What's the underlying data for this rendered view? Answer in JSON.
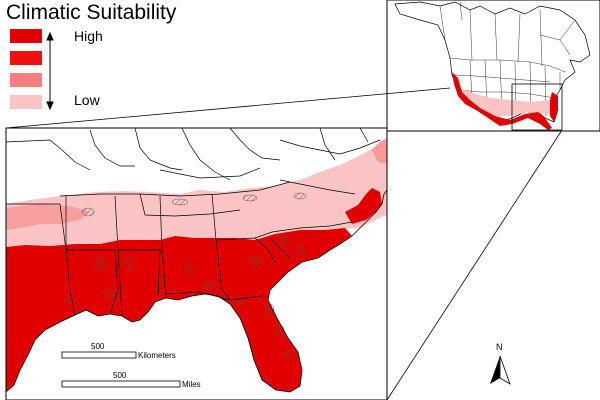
{
  "legend": {
    "title": "Climatic Suitability",
    "high_label": "High",
    "low_label": "Low",
    "classes": [
      "#e10000",
      "#f01010",
      "#f77f7f",
      "#fbc4c4"
    ]
  },
  "scalebar": {
    "km_value": "500",
    "km_unit": "Kilometers",
    "mi_value": "500",
    "mi_unit": "Miles"
  },
  "north_arrow": {
    "label": "N",
    "icon": "north-arrow-icon"
  },
  "colors": {
    "state_border": "#000000",
    "water": "#ffffff",
    "high": "#e10000",
    "low": "#fbc4c4"
  }
}
